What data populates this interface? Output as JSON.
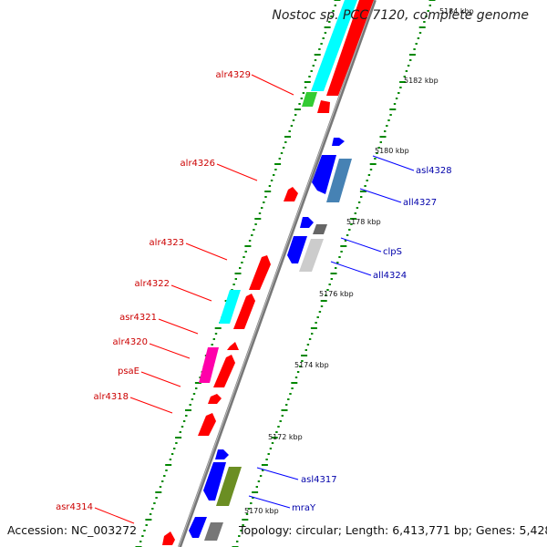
{
  "title": "Nostoc sp. PCC 7120, complete genome",
  "footer": {
    "accession": "Accession: NC_003272",
    "topology": "Topology: circular; Length: 6,413,771 bp; Genes: 5,428"
  },
  "scale_labels": [
    "5184 kbp",
    "5182 kbp",
    "5180 kbp",
    "5178 kbp",
    "5176 kbp",
    "5174 kbp",
    "5172 kbp",
    "5170 kbp"
  ],
  "genes_forward": [
    "alr4329",
    "alr4326",
    "alr4323",
    "alr4322",
    "asr4321",
    "alr4320",
    "psaE",
    "alr4318",
    "asr4314"
  ],
  "genes_reverse": [
    "asl4328",
    "all4327",
    "clpS",
    "all4324",
    "asl4317",
    "mraY"
  ],
  "colors": {
    "forward_label": "#cc0000",
    "reverse_label": "#0000aa",
    "red": "#ff0000",
    "blue": "#0000ff",
    "cyan": "#00ffff",
    "green": "#33cc33",
    "magenta": "#ff00aa",
    "steelblue": "#4682b4",
    "lightgray": "#cccccc",
    "gray": "#777777",
    "olive": "#6b8e23",
    "backbone": "#888888",
    "tick": "#008800"
  }
}
